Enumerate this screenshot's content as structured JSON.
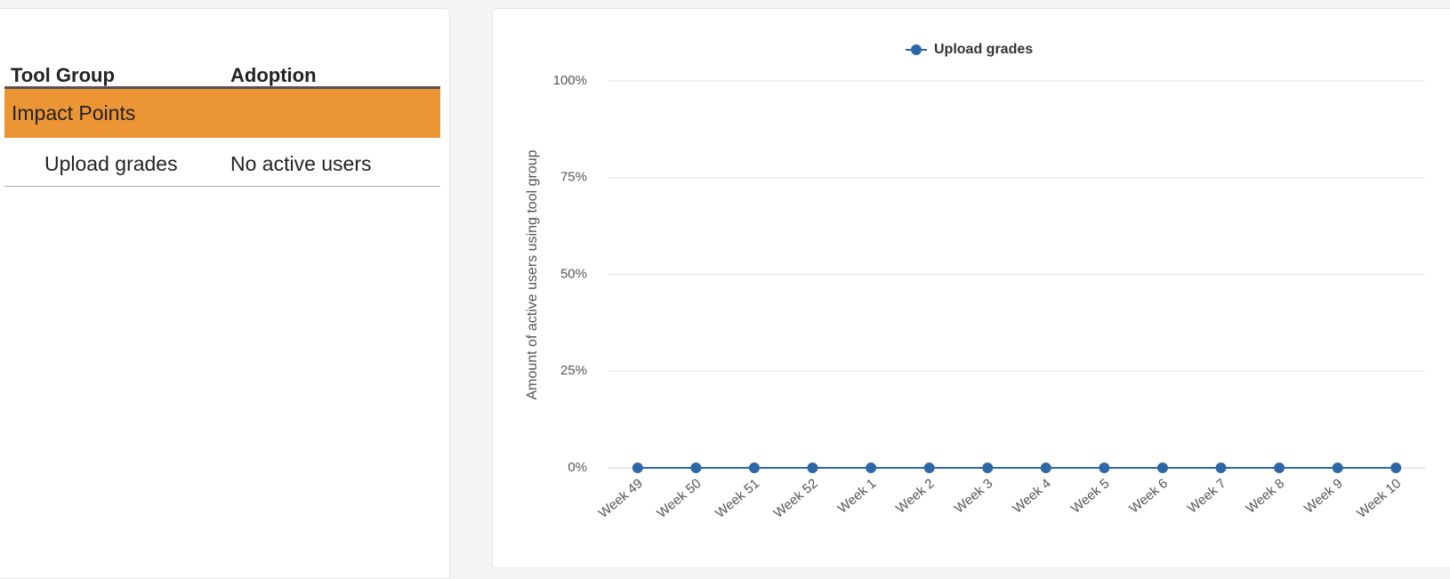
{
  "table": {
    "headers": [
      "Tool Group",
      "Adoption"
    ],
    "group": "Impact Points",
    "rows": [
      [
        "Upload grades",
        "No active users"
      ]
    ]
  },
  "chart_data": {
    "type": "line",
    "y_label": "Amount of active users using tool group",
    "categories": [
      "Week 49",
      "Week 50",
      "Week 51",
      "Week 52",
      "Week 1",
      "Week 2",
      "Week 3",
      "Week 4",
      "Week 5",
      "Week 6",
      "Week 7",
      "Week 8",
      "Week 9",
      "Week 10"
    ],
    "series": [
      {
        "name": "Upload grades",
        "color": "#2e67a6",
        "values": [
          0,
          0,
          0,
          0,
          0,
          0,
          0,
          0,
          0,
          0,
          0,
          0,
          0,
          0
        ]
      }
    ],
    "ylim": [
      0,
      100
    ],
    "yticks": [
      {
        "value": 0,
        "label": "0%"
      },
      {
        "value": 25,
        "label": "25%"
      },
      {
        "value": 50,
        "label": "50%"
      },
      {
        "value": 75,
        "label": "75%"
      },
      {
        "value": 100,
        "label": "100%"
      }
    ],
    "grid": true,
    "legend": "top"
  }
}
